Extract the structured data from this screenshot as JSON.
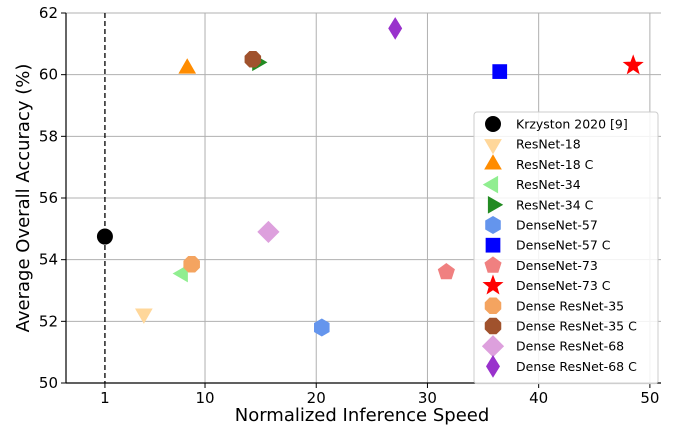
{
  "chart_data": {
    "type": "scatter",
    "title": "",
    "xlabel": "Normalized Inference Speed",
    "ylabel": "Average Overall Accuracy (%)",
    "xlim": [
      -2.5,
      51
    ],
    "ylim": [
      50,
      62
    ],
    "x_ticks": [
      1,
      10,
      20,
      30,
      40,
      50
    ],
    "y_ticks": [
      50,
      52,
      54,
      56,
      58,
      60,
      62
    ],
    "x_tick_labels": [
      "1",
      "10",
      "20",
      "30",
      "40",
      "50"
    ],
    "y_tick_labels": [
      "50",
      "52",
      "54",
      "56",
      "58",
      "60",
      "62"
    ],
    "grid": true,
    "reference_line": {
      "x": 1,
      "style": "dashed"
    },
    "legend_position": "right",
    "series": [
      {
        "name": "Krzyston 2020 [9]",
        "marker": "circle",
        "color": "#000000",
        "x": 1.0,
        "y": 54.75
      },
      {
        "name": "ResNet-18",
        "marker": "triangle-down",
        "color": "#ffd79a",
        "x": 4.5,
        "y": 52.25
      },
      {
        "name": "ResNet-18 C",
        "marker": "triangle-up",
        "color": "#ff8c00",
        "x": 8.4,
        "y": 60.2
      },
      {
        "name": "ResNet-34",
        "marker": "triangle-left",
        "color": "#90ee90",
        "x": 8.0,
        "y": 53.55
      },
      {
        "name": "ResNet-34 C",
        "marker": "triangle-right",
        "color": "#228b22",
        "x": 14.7,
        "y": 60.4
      },
      {
        "name": "DenseNet-57",
        "marker": "hexagon",
        "color": "#6495ed",
        "x": 20.5,
        "y": 51.8
      },
      {
        "name": "DenseNet-57 C",
        "marker": "square",
        "color": "#0000ff",
        "x": 36.5,
        "y": 60.1
      },
      {
        "name": "DenseNet-73",
        "marker": "pentagon",
        "color": "#f08080",
        "x": 31.7,
        "y": 53.6
      },
      {
        "name": "DenseNet-73 C",
        "marker": "star",
        "color": "#ff0000",
        "x": 48.5,
        "y": 60.3
      },
      {
        "name": "Dense ResNet-35",
        "marker": "octagon",
        "color": "#f4a460",
        "x": 8.8,
        "y": 53.85
      },
      {
        "name": "Dense ResNet-35 C",
        "marker": "octagon",
        "color": "#a0522d",
        "x": 14.3,
        "y": 60.5
      },
      {
        "name": "Dense ResNet-68",
        "marker": "diamond",
        "color": "#dda0dd",
        "x": 15.7,
        "y": 54.9
      },
      {
        "name": "Dense ResNet-68 C",
        "marker": "thin-diamond",
        "color": "#9932cc",
        "x": 27.1,
        "y": 61.5
      }
    ]
  }
}
